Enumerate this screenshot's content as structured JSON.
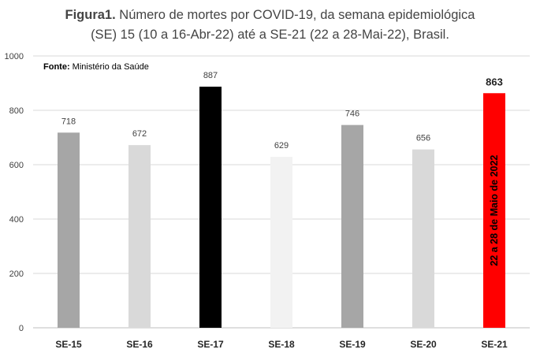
{
  "header": {
    "title_prefix": "Figura1.",
    "title_line1_rest": " Número de mortes por COVID-19, da semana epidemiológica",
    "title_line2": "(SE) 15 (10 a 16-Abr-22) até a SE-21 (22 a 28-Mai-22), Brasil."
  },
  "source": {
    "label": "Fonte:",
    "value": " Ministério da Saúde"
  },
  "chart_data": {
    "type": "bar",
    "title": "Figura1. Número de mortes por COVID-19, da semana epidemiológica (SE) 15 (10 a 16-Abr-22) até a SE-21 (22 a 28-Mai-22), Brasil.",
    "xlabel": "",
    "ylabel": "",
    "categories": [
      "SE-15",
      "SE-16",
      "SE-17",
      "SE-18",
      "SE-19",
      "SE-20",
      "SE-21"
    ],
    "values": [
      718,
      672,
      887,
      629,
      746,
      656,
      863
    ],
    "bar_colors": [
      "#a6a6a6",
      "#d9d9d9",
      "#000000",
      "#f2f2f2",
      "#a6a6a6",
      "#d9d9d9",
      "#ff0000"
    ],
    "ylim": [
      0,
      1000
    ],
    "yticks": [
      0,
      200,
      400,
      600,
      800,
      1000
    ],
    "grid": true,
    "legend": "none",
    "highlight_index": 6,
    "annotation": {
      "category": "SE-21",
      "text": "22 a 28 de Maio de 2022"
    }
  }
}
